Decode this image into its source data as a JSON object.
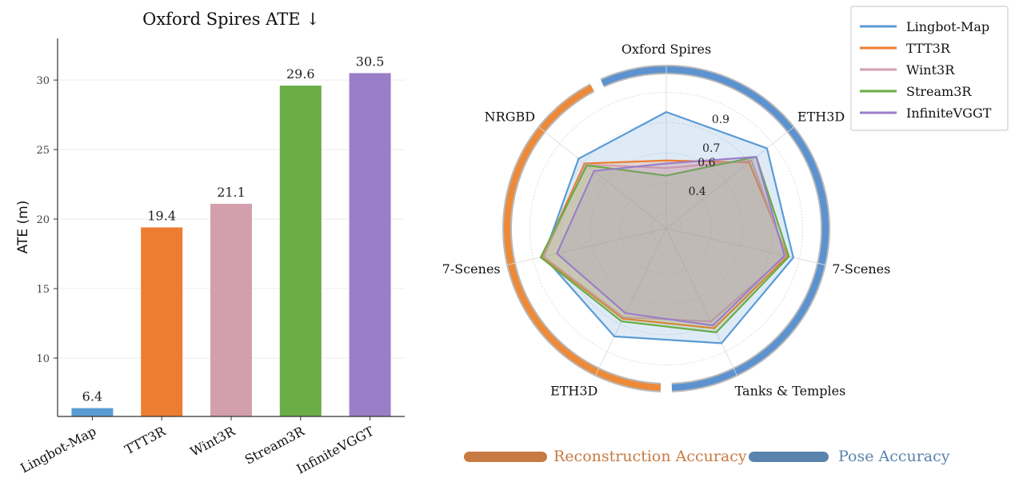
{
  "colors": {
    "Lingbot-Map": "#5b9bd5",
    "TTT3R": "#ed7d31",
    "Wint3R": "#d39fad",
    "Stream3R": "#6aac46",
    "InfiniteVGGT": "#9b7ec8",
    "reconstruction": "#ed8a3a",
    "pose": "#5b92cf",
    "reconstruction_legend": "#c87a43",
    "pose_legend": "#5a84ad"
  },
  "chart_data": [
    {
      "type": "bar",
      "title": "Oxford Spires ATE ↓",
      "ylabel": "ATE (m)",
      "categories": [
        "Lingbot-Map",
        "TTT3R",
        "Wint3R",
        "Stream3R",
        "InfiniteVGGT"
      ],
      "values": [
        6.4,
        19.4,
        21.1,
        29.6,
        30.5
      ],
      "value_labels": [
        "6.4",
        "19.4",
        "21.1",
        "29.6",
        "30.5"
      ],
      "ylim": [
        5.8,
        33
      ],
      "yticks": [
        10,
        15,
        20,
        25,
        30
      ],
      "ytick_labels": [
        "10",
        "15",
        "20",
        "25",
        "30"
      ],
      "grid": "horizontal"
    },
    {
      "type": "radar",
      "axes": [
        "Oxford Spires",
        "ETH3D",
        "7-Scenes",
        "Tanks & Temples",
        "ETH3D",
        "7-Scenes",
        "NRGBD"
      ],
      "rlim": [
        0.1,
        1.05
      ],
      "rticks": [
        0.4,
        0.6,
        0.7,
        0.9
      ],
      "rtick_labels": [
        "0.4",
        "0.6",
        "0.7",
        "0.9"
      ],
      "series": [
        {
          "name": "Lingbot-Map",
          "values": [
            0.87,
            0.95,
            0.96,
            0.94,
            0.89,
            0.93,
            0.84
          ]
        },
        {
          "name": "TTT3R",
          "values": [
            0.55,
            0.8,
            0.92,
            0.83,
            0.76,
            0.94,
            0.79
          ]
        },
        {
          "name": "Wint3R",
          "values": [
            0.5,
            0.82,
            0.91,
            0.78,
            0.75,
            0.93,
            0.78
          ]
        },
        {
          "name": "Stream3R",
          "values": [
            0.45,
            0.86,
            0.93,
            0.86,
            0.78,
            0.95,
            0.77
          ]
        },
        {
          "name": "InfiniteVGGT",
          "values": [
            0.53,
            0.86,
            0.9,
            0.81,
            0.72,
            0.84,
            0.71
          ]
        }
      ],
      "groups": [
        {
          "name": "Reconstruction Accuracy",
          "axes": [
            "Tanks & Temples",
            "ETH3D",
            "7-Scenes",
            "NRGBD"
          ]
        },
        {
          "name": "Pose Accuracy",
          "axes": [
            "Oxford Spires",
            "ETH3D",
            "7-Scenes",
            "Tanks & Temples"
          ]
        }
      ],
      "legend_position": "top-right"
    }
  ],
  "group_legend": {
    "reconstruction_label": "Reconstruction Accuracy",
    "pose_label": "Pose Accuracy"
  }
}
